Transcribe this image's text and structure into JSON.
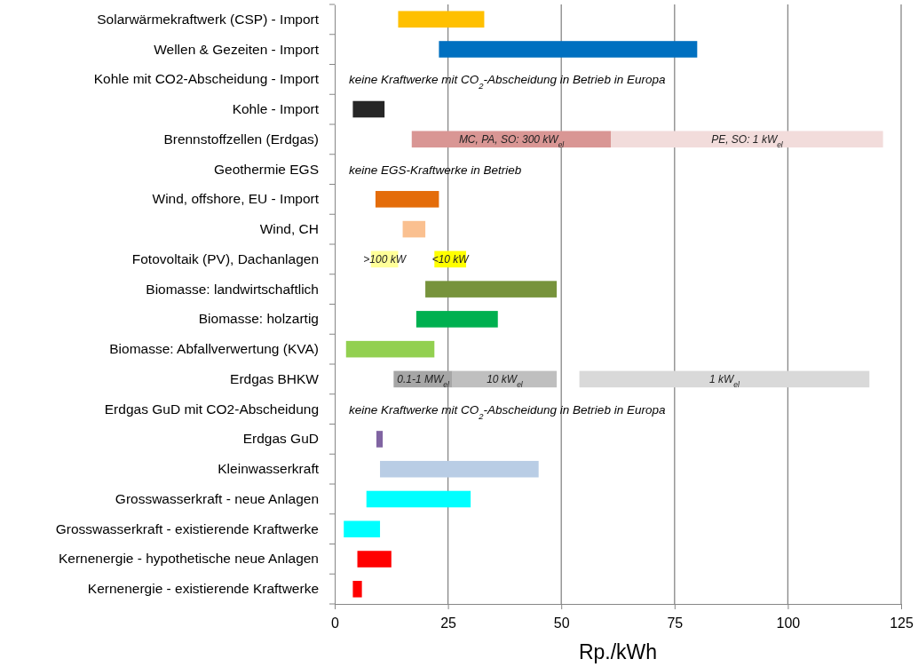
{
  "chart_data": {
    "type": "bar",
    "orientation": "horizontal",
    "xlabel": "Rp./kWh",
    "xlim": [
      0,
      125
    ],
    "xticks": [
      0,
      25,
      50,
      75,
      100,
      125
    ],
    "grid": "x",
    "categories": [
      "Solarwärmekraftwerk (CSP) - Import",
      "Wellen & Gezeiten - Import",
      "Kohle mit CO2-Abscheidung - Import",
      "Kohle - Import",
      "Brennstoffzellen (Erdgas)",
      "Geothermie EGS",
      "Wind, offshore, EU - Import",
      "Wind, CH",
      "Fotovoltaik (PV), Dachanlagen",
      "Biomasse: landwirtschaftlich",
      "Biomasse: holzartig",
      "Biomasse: Abfallverwertung (KVA)",
      "Erdgas BHKW",
      "Erdgas GuD mit CO2-Abscheidung",
      "Erdgas GuD",
      "Kleinwasserkraft",
      "Grosswasserkraft - neue Anlagen",
      "Grosswasserkraft - existierende Kraftwerke",
      "Kernenergie - hypothetische neue Anlagen",
      "Kernenergie - existierende Kraftwerke"
    ],
    "series": [
      {
        "base": [
          14,
          23,
          null,
          4,
          17,
          null,
          9,
          15,
          8,
          20,
          18,
          2.5,
          13,
          null,
          9.2,
          10,
          7,
          2,
          5,
          4
        ],
        "values": [
          19,
          57,
          null,
          7,
          44,
          null,
          14,
          5,
          6,
          29,
          18,
          19.5,
          13,
          null,
          1.4,
          35,
          23,
          8,
          7.5,
          2
        ],
        "colors": [
          "#ffc000",
          "#0070c0",
          null,
          "#262626",
          "#d99694",
          null,
          "#e46c0a",
          "#fac090",
          "#ffff99",
          "#77933c",
          "#00b050",
          "#92d050",
          "#a6a6a6",
          null,
          "#8064a2",
          "#b9cde5",
          "#00ffff",
          "#00ffff",
          "#ff0000",
          "#ff0000"
        ]
      },
      {
        "base": [
          null,
          null,
          null,
          null,
          61,
          null,
          null,
          null,
          22,
          null,
          null,
          null,
          26,
          null,
          null,
          null,
          null,
          null,
          null,
          null
        ],
        "values": [
          null,
          null,
          null,
          null,
          60,
          null,
          null,
          null,
          7,
          null,
          null,
          null,
          23,
          null,
          null,
          null,
          null,
          null,
          null,
          null
        ],
        "colors": [
          null,
          null,
          null,
          null,
          "#f2dcdb",
          null,
          null,
          null,
          "#ffff00",
          null,
          null,
          null,
          "#bfbfbf",
          null,
          null,
          null,
          null,
          null,
          null,
          null
        ]
      },
      {
        "base": [
          null,
          null,
          null,
          null,
          null,
          null,
          null,
          null,
          null,
          null,
          null,
          null,
          54,
          null,
          null,
          null,
          null,
          null,
          null,
          null
        ],
        "values": [
          null,
          null,
          null,
          null,
          null,
          null,
          null,
          null,
          null,
          null,
          null,
          null,
          64,
          null,
          null,
          null,
          null,
          null,
          null,
          null
        ],
        "colors": [
          null,
          null,
          null,
          null,
          null,
          null,
          null,
          null,
          null,
          null,
          null,
          null,
          "#d9d9d9",
          null,
          null,
          null,
          null,
          null,
          null,
          null
        ]
      }
    ],
    "annotations": [
      "keine Kraftwerke mit CO$_{2}$-Abscheidung in Betrieb in Europa",
      "keine EGS-Kraftwerke in Betrieb",
      "keine Kraftwerke mit CO$_{2}$-Abscheidung in Betrieb in Europa",
      {
        "text": "MC, PA, SO: 300 kW$_{el}$",
        "x": 39,
        "y": "Brennstoffzellen (Erdgas)"
      },
      {
        "text": "PE, SO: 1 kW$_{el}$",
        "x": 91,
        "y": "Brennstoffzellen (Erdgas)"
      },
      {
        "text": ">100 kW",
        "x": 11,
        "y": "Fotovoltaik (PV), Dachanlagen"
      },
      {
        "text": "<10 kW",
        "x": 25.5,
        "y": "Fotovoltaik (PV), Dachanlagen"
      },
      {
        "text": "0.1-1 MW$_{el}$",
        "x": 19.5,
        "y": "Erdgas BHKW"
      },
      {
        "text": "10 kW$_{el}$",
        "x": 37.5,
        "y": "Erdgas BHKW"
      },
      {
        "text": "1 kW$_{el}$",
        "x": 86,
        "y": "Erdgas BHKW"
      }
    ]
  }
}
